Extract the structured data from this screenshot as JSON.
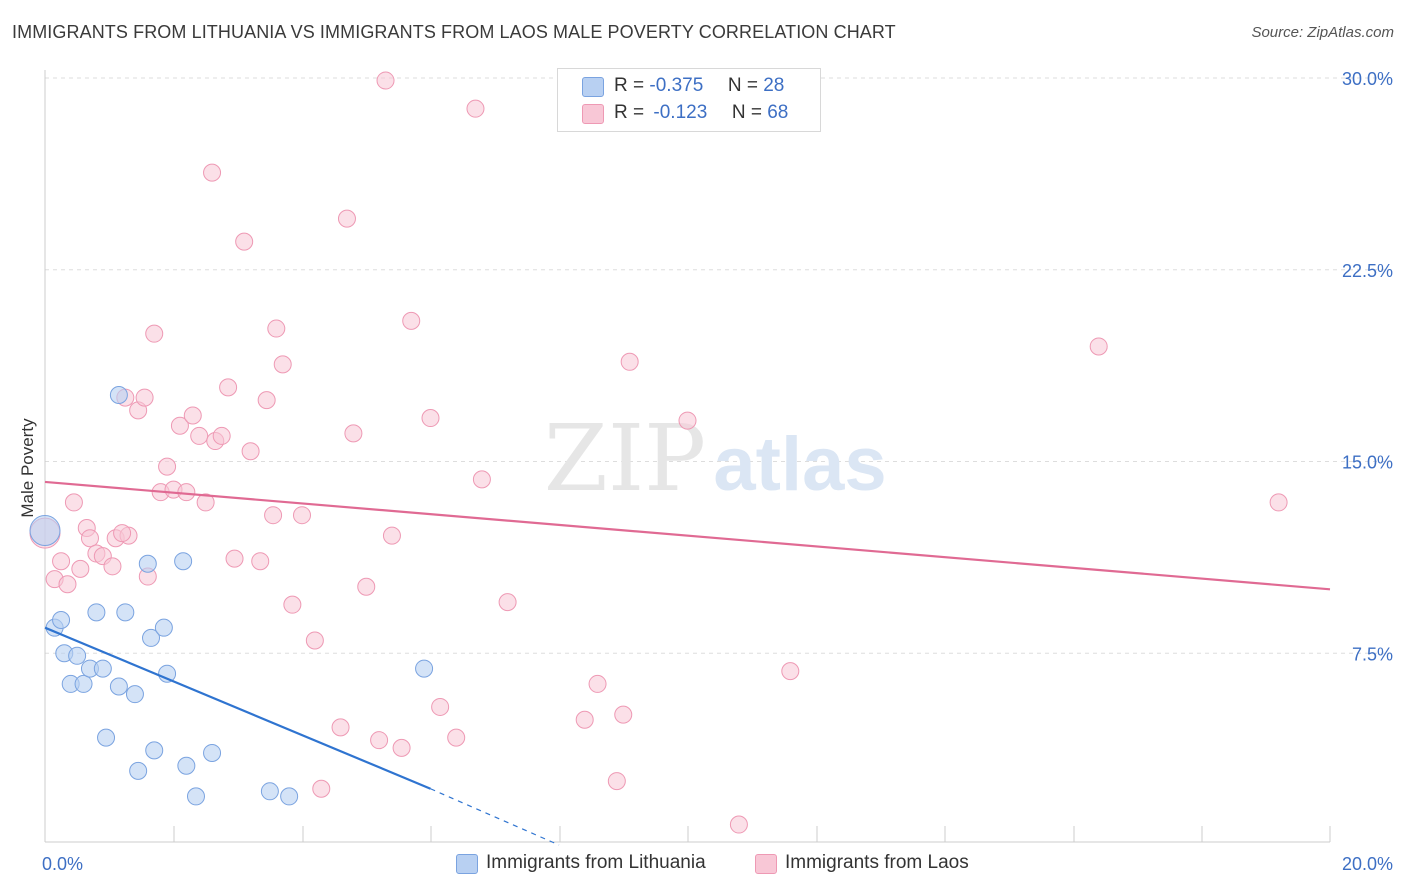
{
  "header": {
    "title": "IMMIGRANTS FROM LITHUANIA VS IMMIGRANTS FROM LAOS MALE POVERTY CORRELATION CHART",
    "source_label": "Source: ZipAtlas.com"
  },
  "legend": {
    "series1": {
      "r_label": "R =",
      "r_value": "-0.375",
      "n_label": "N =",
      "n_value": "28"
    },
    "series2": {
      "r_label": "R =",
      "r_value": "-0.123",
      "n_label": "N =",
      "n_value": "68"
    }
  },
  "watermark": {
    "part1": "ZIP",
    "part2": "atlas"
  },
  "colors": {
    "lithuania_fill": "#b8d0f2",
    "lithuania_stroke": "#7aa3e0",
    "lithuania_line": "#2f74d0",
    "laos_fill": "#f8c7d6",
    "laos_stroke": "#ee99b4",
    "laos_line": "#e06a93",
    "axis_text": "#3d6fc4",
    "grid": "#dddddd"
  },
  "chart_data": {
    "type": "scatter",
    "title": "IMMIGRANTS FROM LITHUANIA VS IMMIGRANTS FROM LAOS MALE POVERTY CORRELATION CHART",
    "xlabel": "",
    "ylabel": "Male Poverty",
    "xlim": [
      0,
      20
    ],
    "ylim": [
      0,
      30.5
    ],
    "x_tick_labels": [
      "0.0%",
      "20.0%"
    ],
    "y_ticks": [
      7.5,
      15.0,
      22.5,
      30.0
    ],
    "y_tick_labels": [
      "7.5%",
      "15.0%",
      "22.5%",
      "30.0%"
    ],
    "grid": true,
    "legend_position": "top-center",
    "series": [
      {
        "name": "Immigrants from Lithuania",
        "r": -0.375,
        "n": 28,
        "trend": {
          "x0": 0.0,
          "y0": 8.5,
          "x1": 6.0,
          "y1": 2.2,
          "dashed_to_x": 8.0,
          "dashed_to_y": 0.0
        },
        "points": [
          [
            0.0,
            12.3
          ],
          [
            0.15,
            8.5
          ],
          [
            0.25,
            8.8
          ],
          [
            0.3,
            7.5
          ],
          [
            0.4,
            6.3
          ],
          [
            0.5,
            7.4
          ],
          [
            0.6,
            6.3
          ],
          [
            0.7,
            6.9
          ],
          [
            0.8,
            9.1
          ],
          [
            0.9,
            6.9
          ],
          [
            0.95,
            4.2
          ],
          [
            1.15,
            6.2
          ],
          [
            1.25,
            9.1
          ],
          [
            1.4,
            5.9
          ],
          [
            1.45,
            2.9
          ],
          [
            1.6,
            11.0
          ],
          [
            1.65,
            8.1
          ],
          [
            1.7,
            3.7
          ],
          [
            1.85,
            8.5
          ],
          [
            1.9,
            6.7
          ],
          [
            2.2,
            3.1
          ],
          [
            2.15,
            11.1
          ],
          [
            2.6,
            3.6
          ],
          [
            2.35,
            1.9
          ],
          [
            3.5,
            2.1
          ],
          [
            3.8,
            1.9
          ],
          [
            5.9,
            6.9
          ],
          [
            1.15,
            17.6
          ]
        ]
      },
      {
        "name": "Immigrants from Laos",
        "r": -0.123,
        "n": 68,
        "trend": {
          "x0": 0.0,
          "y0": 14.2,
          "x1": 20.0,
          "y1": 10.0
        },
        "points": [
          [
            0.0,
            12.2
          ],
          [
            0.15,
            10.4
          ],
          [
            0.25,
            11.1
          ],
          [
            0.35,
            10.2
          ],
          [
            0.45,
            13.4
          ],
          [
            0.55,
            10.8
          ],
          [
            0.65,
            12.4
          ],
          [
            0.7,
            12.0
          ],
          [
            0.8,
            11.4
          ],
          [
            0.9,
            11.3
          ],
          [
            1.05,
            10.9
          ],
          [
            1.1,
            12.0
          ],
          [
            1.25,
            17.5
          ],
          [
            1.3,
            12.1
          ],
          [
            1.45,
            17.0
          ],
          [
            1.55,
            17.5
          ],
          [
            1.6,
            10.5
          ],
          [
            1.7,
            20.0
          ],
          [
            1.8,
            13.8
          ],
          [
            1.9,
            14.8
          ],
          [
            2.0,
            13.9
          ],
          [
            2.1,
            16.4
          ],
          [
            2.2,
            13.8
          ],
          [
            2.3,
            16.8
          ],
          [
            2.4,
            16.0
          ],
          [
            2.5,
            13.4
          ],
          [
            2.6,
            26.3
          ],
          [
            2.65,
            15.8
          ],
          [
            2.75,
            16.0
          ],
          [
            2.85,
            17.9
          ],
          [
            2.95,
            11.2
          ],
          [
            3.1,
            23.6
          ],
          [
            3.2,
            15.4
          ],
          [
            3.35,
            11.1
          ],
          [
            3.45,
            17.4
          ],
          [
            3.55,
            12.9
          ],
          [
            3.6,
            20.2
          ],
          [
            3.7,
            18.8
          ],
          [
            3.85,
            9.4
          ],
          [
            4.0,
            12.9
          ],
          [
            4.2,
            8.0
          ],
          [
            4.3,
            2.2
          ],
          [
            4.6,
            4.6
          ],
          [
            4.7,
            24.5
          ],
          [
            4.8,
            16.1
          ],
          [
            5.0,
            10.1
          ],
          [
            5.2,
            4.1
          ],
          [
            5.3,
            29.9
          ],
          [
            5.4,
            12.1
          ],
          [
            5.55,
            3.8
          ],
          [
            5.7,
            20.5
          ],
          [
            6.0,
            16.7
          ],
          [
            6.15,
            5.4
          ],
          [
            6.4,
            4.2
          ],
          [
            6.7,
            28.8
          ],
          [
            6.8,
            14.3
          ],
          [
            7.2,
            9.5
          ],
          [
            8.4,
            4.9
          ],
          [
            8.6,
            6.3
          ],
          [
            8.9,
            2.5
          ],
          [
            9.0,
            5.1
          ],
          [
            9.1,
            18.9
          ],
          [
            10.0,
            16.6
          ],
          [
            10.8,
            0.8
          ],
          [
            11.6,
            6.8
          ],
          [
            16.4,
            19.5
          ],
          [
            19.2,
            13.4
          ],
          [
            1.2,
            12.2
          ]
        ]
      }
    ]
  },
  "bottom_legend": {
    "item1": "Immigrants from Lithuania",
    "item2": "Immigrants from Laos"
  }
}
